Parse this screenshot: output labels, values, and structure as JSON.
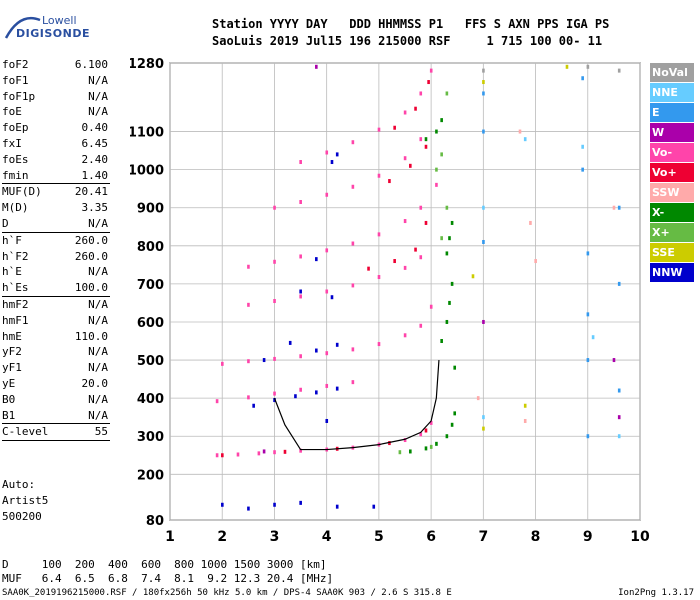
{
  "logo": {
    "line1": "Lowell",
    "line2": "DIGISONDE"
  },
  "header": {
    "line1": "Station YYYY DAY   DDD HHMMSS P1   FFS S AXN PPS IGA PS",
    "line2": "SaoLuis 2019 Jul15 196 215000 RSF     1 715 100 00- 11"
  },
  "params": [
    {
      "k": "foF2",
      "v": "6.100"
    },
    {
      "k": "foF1",
      "v": "N/A"
    },
    {
      "k": "foF1p",
      "v": "N/A"
    },
    {
      "k": "foE",
      "v": "N/A"
    },
    {
      "k": "foEp",
      "v": "0.40"
    },
    {
      "k": "fxI",
      "v": "6.45"
    },
    {
      "k": "foEs",
      "v": "2.40"
    },
    {
      "k": "fmin",
      "v": "1.40"
    },
    {
      "sep": true
    },
    {
      "k": "MUF(D)",
      "v": "20.41"
    },
    {
      "k": "M(D)",
      "v": "3.35"
    },
    {
      "k": "D",
      "v": "N/A"
    },
    {
      "sep": true
    },
    {
      "k": "h`F",
      "v": "260.0"
    },
    {
      "k": "h`F2",
      "v": "260.0"
    },
    {
      "k": "h`E",
      "v": "N/A"
    },
    {
      "k": "h`Es",
      "v": "100.0"
    },
    {
      "sep": true
    },
    {
      "k": "hmF2",
      "v": "N/A"
    },
    {
      "k": "hmF1",
      "v": "N/A"
    },
    {
      "k": "hmE",
      "v": "110.0"
    },
    {
      "k": "yF2",
      "v": "N/A"
    },
    {
      "k": "yF1",
      "v": "N/A"
    },
    {
      "k": "yE",
      "v": "20.0"
    },
    {
      "k": "B0",
      "v": "N/A"
    },
    {
      "k": "B1",
      "v": "N/A"
    },
    {
      "sep": true
    },
    {
      "k": "C-level",
      "v": "55"
    },
    {
      "sep": true
    }
  ],
  "auto": {
    "line1": "Auto:",
    "line2": "Artist5",
    "line3": "500200"
  },
  "legend": [
    {
      "label": "NoVal",
      "color": "#a0a0a0"
    },
    {
      "label": "NNE",
      "color": "#66ccff"
    },
    {
      "label": "E",
      "color": "#3399ee"
    },
    {
      "label": "W",
      "color": "#aa00aa"
    },
    {
      "label": "Vo-",
      "color": "#ff44aa"
    },
    {
      "label": "Vo+",
      "color": "#ee0033"
    },
    {
      "label": "SSW",
      "color": "#ffaaaa"
    },
    {
      "label": "X-",
      "color": "#008800"
    },
    {
      "label": "X+",
      "color": "#66bb44"
    },
    {
      "label": "SSE",
      "color": "#cccc00"
    },
    {
      "label": "NNW",
      "color": "#0000cc"
    }
  ],
  "bottom": {
    "line1": "D     100  200  400  600  800 1000 1500 3000 [km]",
    "line2": "MUF   6.4  6.5  6.8  7.4  8.1  9.2 12.3 20.4 [MHz]"
  },
  "footer": {
    "left": "SAA0K_2019196215000.RSF / 180fx256h 50 kHz 5.0 km / DPS-4 SAA0K 903 / 2.6 S 315.8 E",
    "right": "Ion2Png 1.3.17"
  },
  "chart_data": {
    "type": "scatter",
    "xlim": [
      1,
      10
    ],
    "ylim": [
      80,
      1280
    ],
    "x_ticks": [
      1,
      2,
      3,
      4,
      5,
      6,
      7,
      8,
      9,
      10
    ],
    "y_ticks": [
      80,
      200,
      300,
      400,
      500,
      600,
      700,
      800,
      900,
      1000,
      1100,
      1280
    ],
    "grid": true,
    "series": [
      {
        "name": "Vo-",
        "color": "#ff44aa",
        "points": [
          [
            1.9,
            250
          ],
          [
            2.3,
            252
          ],
          [
            2.7,
            255
          ],
          [
            3.0,
            258
          ],
          [
            3.5,
            262
          ],
          [
            4.0,
            265
          ],
          [
            4.5,
            270
          ],
          [
            5.0,
            278
          ],
          [
            5.5,
            290
          ],
          [
            5.8,
            305
          ],
          [
            6.0,
            335
          ],
          [
            1.9,
            392
          ],
          [
            2.5,
            402
          ],
          [
            3.0,
            412
          ],
          [
            3.5,
            422
          ],
          [
            4.0,
            432
          ],
          [
            4.5,
            442
          ],
          [
            2.0,
            490
          ],
          [
            2.5,
            497
          ],
          [
            3.0,
            503
          ],
          [
            3.5,
            510
          ],
          [
            4.0,
            518
          ],
          [
            4.5,
            528
          ],
          [
            5.0,
            542
          ],
          [
            5.5,
            565
          ],
          [
            5.8,
            590
          ],
          [
            6.0,
            640
          ],
          [
            2.5,
            645
          ],
          [
            3.0,
            655
          ],
          [
            3.5,
            667
          ],
          [
            4.0,
            680
          ],
          [
            4.5,
            696
          ],
          [
            5.0,
            718
          ],
          [
            5.5,
            742
          ],
          [
            5.8,
            770
          ],
          [
            2.5,
            745
          ],
          [
            3.0,
            758
          ],
          [
            3.5,
            772
          ],
          [
            4.0,
            788
          ],
          [
            4.5,
            806
          ],
          [
            5.0,
            830
          ],
          [
            5.5,
            865
          ],
          [
            5.8,
            900
          ],
          [
            6.1,
            960
          ],
          [
            3.0,
            900
          ],
          [
            3.5,
            915
          ],
          [
            4.0,
            934
          ],
          [
            4.5,
            955
          ],
          [
            5.0,
            984
          ],
          [
            5.5,
            1030
          ],
          [
            5.8,
            1080
          ],
          [
            3.5,
            1020
          ],
          [
            4.0,
            1045
          ],
          [
            4.5,
            1072
          ],
          [
            5.0,
            1105
          ],
          [
            5.5,
            1150
          ],
          [
            5.8,
            1200
          ],
          [
            6.0,
            1260
          ]
        ]
      },
      {
        "name": "Vo+",
        "color": "#ee0033",
        "points": [
          [
            2.0,
            250
          ],
          [
            3.2,
            259
          ],
          [
            4.2,
            267
          ],
          [
            5.2,
            282
          ],
          [
            5.9,
            315
          ],
          [
            4.8,
            740
          ],
          [
            5.3,
            760
          ],
          [
            5.7,
            790
          ],
          [
            5.9,
            860
          ],
          [
            5.2,
            970
          ],
          [
            5.6,
            1010
          ],
          [
            5.9,
            1060
          ],
          [
            5.3,
            1110
          ],
          [
            5.7,
            1160
          ],
          [
            5.95,
            1230
          ]
        ]
      },
      {
        "name": "X-",
        "color": "#008800",
        "points": [
          [
            5.6,
            260
          ],
          [
            5.9,
            268
          ],
          [
            6.1,
            280
          ],
          [
            6.3,
            300
          ],
          [
            6.4,
            330
          ],
          [
            6.45,
            360
          ],
          [
            6.45,
            480
          ],
          [
            6.2,
            550
          ],
          [
            6.3,
            600
          ],
          [
            6.35,
            650
          ],
          [
            6.4,
            700
          ],
          [
            6.3,
            780
          ],
          [
            6.35,
            820
          ],
          [
            6.4,
            860
          ],
          [
            5.9,
            1080
          ],
          [
            6.1,
            1100
          ],
          [
            6.2,
            1130
          ]
        ]
      },
      {
        "name": "X+",
        "color": "#66bb44",
        "points": [
          [
            5.4,
            258
          ],
          [
            6.0,
            272
          ],
          [
            6.2,
            820
          ],
          [
            6.3,
            900
          ],
          [
            6.1,
            1000
          ],
          [
            6.2,
            1040
          ],
          [
            6.3,
            1200
          ]
        ]
      },
      {
        "name": "NNW",
        "color": "#0000cc",
        "points": [
          [
            3.0,
            395
          ],
          [
            3.4,
            405
          ],
          [
            3.8,
            415
          ],
          [
            4.2,
            425
          ],
          [
            2.8,
            500
          ],
          [
            3.3,
            545
          ],
          [
            3.8,
            525
          ],
          [
            4.2,
            540
          ],
          [
            3.5,
            680
          ],
          [
            4.1,
            665
          ],
          [
            3.8,
            765
          ],
          [
            4.2,
            1040
          ],
          [
            4.1,
            1020
          ],
          [
            2.0,
            120
          ],
          [
            2.5,
            110
          ],
          [
            3.0,
            120
          ],
          [
            3.5,
            125
          ],
          [
            4.2,
            115
          ],
          [
            4.9,
            115
          ],
          [
            2.6,
            380
          ],
          [
            4.0,
            340
          ]
        ]
      },
      {
        "name": "E",
        "color": "#3399ee",
        "points": [
          [
            7.0,
            1200
          ],
          [
            7.0,
            1100
          ],
          [
            7.0,
            810
          ],
          [
            8.9,
            1240
          ],
          [
            8.9,
            1000
          ],
          [
            9.0,
            780
          ],
          [
            9.0,
            620
          ],
          [
            9.0,
            500
          ],
          [
            9.0,
            300
          ],
          [
            9.6,
            900
          ],
          [
            9.6,
            700
          ],
          [
            9.6,
            420
          ]
        ]
      },
      {
        "name": "NNE",
        "color": "#66ccff",
        "points": [
          [
            7.0,
            900
          ],
          [
            7.8,
            1080
          ],
          [
            8.9,
            1060
          ],
          [
            9.1,
            560
          ],
          [
            9.6,
            300
          ],
          [
            7.0,
            350
          ]
        ]
      },
      {
        "name": "SSW",
        "color": "#ffaaaa",
        "points": [
          [
            7.7,
            1100
          ],
          [
            7.9,
            860
          ],
          [
            8.0,
            760
          ],
          [
            9.5,
            900
          ],
          [
            7.8,
            340
          ],
          [
            6.9,
            400
          ]
        ]
      },
      {
        "name": "SSE",
        "color": "#cccc00",
        "points": [
          [
            7.0,
            1230
          ],
          [
            7.0,
            320
          ],
          [
            7.8,
            380
          ],
          [
            6.8,
            720
          ],
          [
            8.6,
            1270
          ]
        ]
      },
      {
        "name": "W",
        "color": "#aa00aa",
        "points": [
          [
            3.8,
            1270
          ],
          [
            7.0,
            600
          ],
          [
            9.5,
            500
          ],
          [
            9.6,
            350
          ],
          [
            2.8,
            260
          ]
        ]
      },
      {
        "name": "NoVal",
        "color": "#a0a0a0",
        "points": [
          [
            7.0,
            1260
          ],
          [
            9.0,
            1270
          ],
          [
            9.6,
            1260
          ]
        ]
      }
    ],
    "trace_line": {
      "name": "trace",
      "color": "#000000",
      "points": [
        [
          3.0,
          400
        ],
        [
          3.2,
          330
        ],
        [
          3.5,
          265
        ],
        [
          4.0,
          265
        ],
        [
          4.5,
          270
        ],
        [
          5.0,
          278
        ],
        [
          5.5,
          292
        ],
        [
          5.8,
          310
        ],
        [
          6.0,
          340
        ],
        [
          6.1,
          400
        ],
        [
          6.15,
          500
        ]
      ]
    }
  }
}
